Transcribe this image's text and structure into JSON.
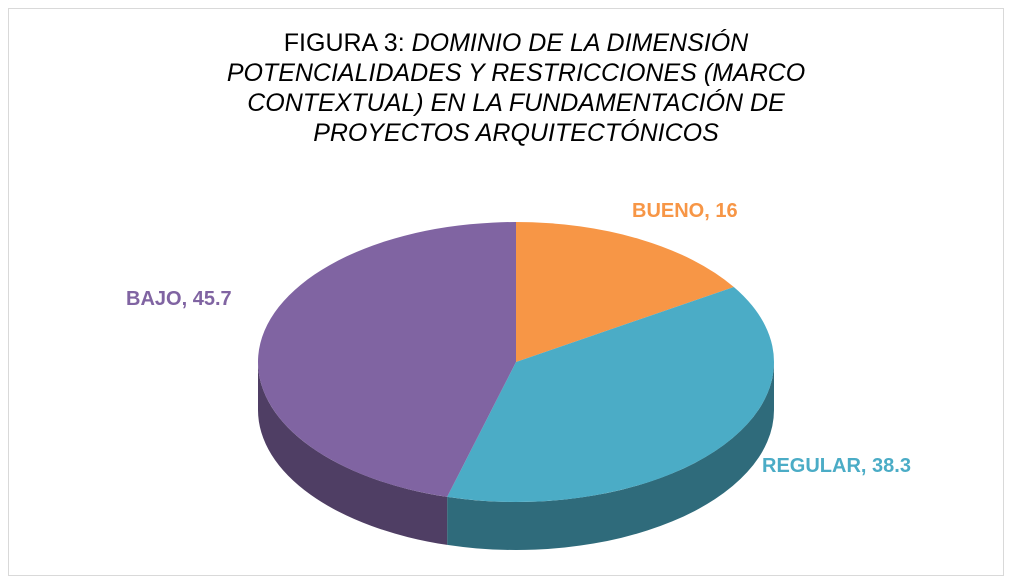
{
  "chart_data": {
    "type": "pie",
    "figure_label": "FIGURA  3:",
    "title": "DOMINIO DE LA DIMENSIÓN POTENCIALIDADES Y RESTRICCIONES (MARCO CONTEXTUAL) EN LA FUNDAMENTACIÓN DE PROYECTOS ARQUITECTÓNICOS",
    "categories": [
      "BUENO",
      "REGULAR",
      "BAJO"
    ],
    "values": [
      16,
      38.3,
      45.7
    ],
    "colors": [
      "#f79646",
      "#4bacc6",
      "#8064a2"
    ]
  }
}
